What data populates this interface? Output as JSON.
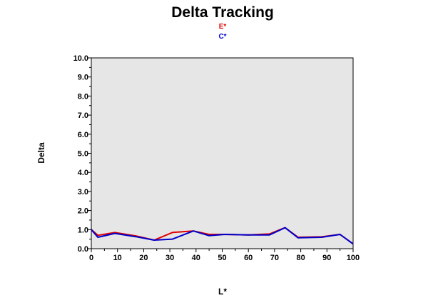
{
  "chart_data": {
    "type": "line",
    "title": "Delta Tracking",
    "xlabel": "L*",
    "ylabel": "Delta",
    "xlim": [
      0,
      100
    ],
    "ylim": [
      0,
      10
    ],
    "x_ticks": [
      "0",
      "10",
      "20",
      "30",
      "40",
      "50",
      "60",
      "70",
      "80",
      "90",
      "100"
    ],
    "y_ticks": [
      "0.0",
      "1.0",
      "2.0",
      "3.0",
      "4.0",
      "5.0",
      "6.0",
      "7.0",
      "8.0",
      "9.0",
      "10.0"
    ],
    "grid": false,
    "legend_position": "top-center",
    "plot_background": "#e6e6e6",
    "series": [
      {
        "name": "E*",
        "color": "#e00000",
        "x": [
          0,
          2.5,
          9,
          17,
          24,
          31,
          39,
          45,
          51,
          60,
          68,
          74,
          79,
          88,
          95,
          100
        ],
        "y": [
          1.0,
          0.7,
          0.85,
          0.67,
          0.45,
          0.85,
          0.93,
          0.75,
          0.75,
          0.72,
          0.77,
          1.1,
          0.6,
          0.62,
          0.75,
          0.25
        ]
      },
      {
        "name": "C*",
        "color": "#0000cc",
        "x": [
          0,
          2.5,
          9,
          17,
          24,
          31,
          39,
          45,
          51,
          60,
          68,
          74,
          79,
          88,
          95,
          100
        ],
        "y": [
          1.0,
          0.6,
          0.8,
          0.63,
          0.45,
          0.5,
          0.93,
          0.68,
          0.75,
          0.72,
          0.72,
          1.1,
          0.57,
          0.6,
          0.75,
          0.25
        ]
      }
    ]
  }
}
